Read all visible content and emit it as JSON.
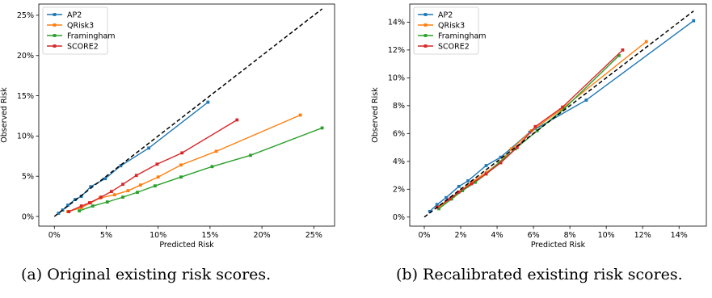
{
  "chart_data": [
    {
      "type": "line",
      "xlabel": "Predicted Risk",
      "ylabel": "Observed Risk",
      "xlim": [
        -1.5,
        27
      ],
      "ylim": [
        -1.2,
        26.4
      ],
      "xticks": [
        0,
        5,
        10,
        15,
        20,
        25
      ],
      "yticks": [
        0,
        5,
        10,
        15,
        20,
        25
      ],
      "tick_format": "{v}%",
      "grid": false,
      "legend_position": "top-left",
      "reference_line": {
        "from": [
          0,
          0
        ],
        "to": [
          25.8,
          25.8
        ],
        "style": "dashed"
      },
      "caption": "(a) Original existing risk scores.",
      "series": [
        {
          "name": "AP2",
          "color": "#1f77b4",
          "x": [
            0.4,
            0.8,
            1.3,
            2.0,
            2.6,
            3.5,
            4.9,
            6.4,
            9.1,
            14.8
          ],
          "y": [
            0.4,
            0.8,
            1.4,
            2.1,
            2.5,
            3.7,
            4.7,
            6.3,
            8.5,
            14.2
          ]
        },
        {
          "name": "QRisk3",
          "color": "#ff7f0e",
          "x": [
            1.3,
            2.6,
            3.5,
            4.4,
            5.8,
            7.1,
            8.3,
            10.0,
            12.2,
            15.6,
            23.7
          ],
          "y": [
            0.6,
            1.1,
            1.7,
            2.3,
            2.7,
            3.2,
            3.9,
            4.9,
            6.4,
            8.1,
            12.6
          ]
        },
        {
          "name": "Framingham",
          "color": "#2ca02c",
          "x": [
            2.4,
            3.7,
            5.1,
            6.6,
            8.0,
            9.7,
            12.2,
            15.2,
            18.9,
            25.8
          ],
          "y": [
            0.7,
            1.3,
            1.8,
            2.4,
            3.0,
            3.8,
            4.9,
            6.2,
            7.6,
            11.0
          ]
        },
        {
          "name": "SCORE2",
          "color": "#d62728",
          "x": [
            1.4,
            2.6,
            3.4,
            4.5,
            5.5,
            6.6,
            7.9,
            9.9,
            12.3,
            17.6
          ],
          "y": [
            0.6,
            1.3,
            1.7,
            2.4,
            3.1,
            4.0,
            5.1,
            6.5,
            7.9,
            12.0
          ]
        }
      ]
    },
    {
      "type": "line",
      "xlabel": "Predicted Risk",
      "ylabel": "Observed Risk",
      "xlim": [
        -0.8,
        15.5
      ],
      "ylim": [
        -0.65,
        15.3
      ],
      "xticks": [
        0,
        2,
        4,
        6,
        8,
        10,
        12,
        14
      ],
      "yticks": [
        0,
        2,
        4,
        6,
        8,
        10,
        12,
        14
      ],
      "tick_format": "{v}%",
      "grid": false,
      "legend_position": "top-left",
      "reference_line": {
        "from": [
          0,
          0
        ],
        "to": [
          14.8,
          14.8
        ],
        "style": "dashed"
      },
      "caption": "(b) Recalibrated existing risk scores.",
      "series": [
        {
          "name": "AP2",
          "color": "#1f77b4",
          "x": [
            0.3,
            0.7,
            1.2,
            1.9,
            2.4,
            3.4,
            4.2,
            5.8,
            8.9,
            14.8
          ],
          "y": [
            0.4,
            0.9,
            1.4,
            2.2,
            2.6,
            3.7,
            4.3,
            6.1,
            8.4,
            14.1
          ]
        },
        {
          "name": "QRisk3",
          "color": "#ff7f0e",
          "x": [
            0.8,
            1.6,
            2.1,
            2.6,
            3.4,
            4.1,
            4.8,
            5.9,
            7.5,
            12.2
          ],
          "y": [
            0.7,
            1.5,
            2.0,
            2.5,
            3.2,
            3.9,
            4.9,
            6.2,
            7.7,
            12.6
          ]
        },
        {
          "name": "Framingham",
          "color": "#2ca02c",
          "x": [
            0.8,
            1.5,
            2.1,
            2.8,
            3.4,
            4.1,
            5.0,
            6.2,
            7.7,
            10.7
          ],
          "y": [
            0.6,
            1.3,
            1.9,
            2.5,
            3.1,
            3.9,
            4.9,
            6.2,
            7.8,
            11.6
          ]
        },
        {
          "name": "SCORE2",
          "color": "#d62728",
          "x": [
            0.7,
            1.4,
            1.9,
            2.6,
            3.4,
            4.2,
            5.1,
            6.1,
            7.6,
            10.9
          ],
          "y": [
            0.7,
            1.3,
            1.8,
            2.4,
            3.1,
            3.9,
            5.0,
            6.5,
            7.9,
            12.0
          ]
        }
      ]
    }
  ]
}
